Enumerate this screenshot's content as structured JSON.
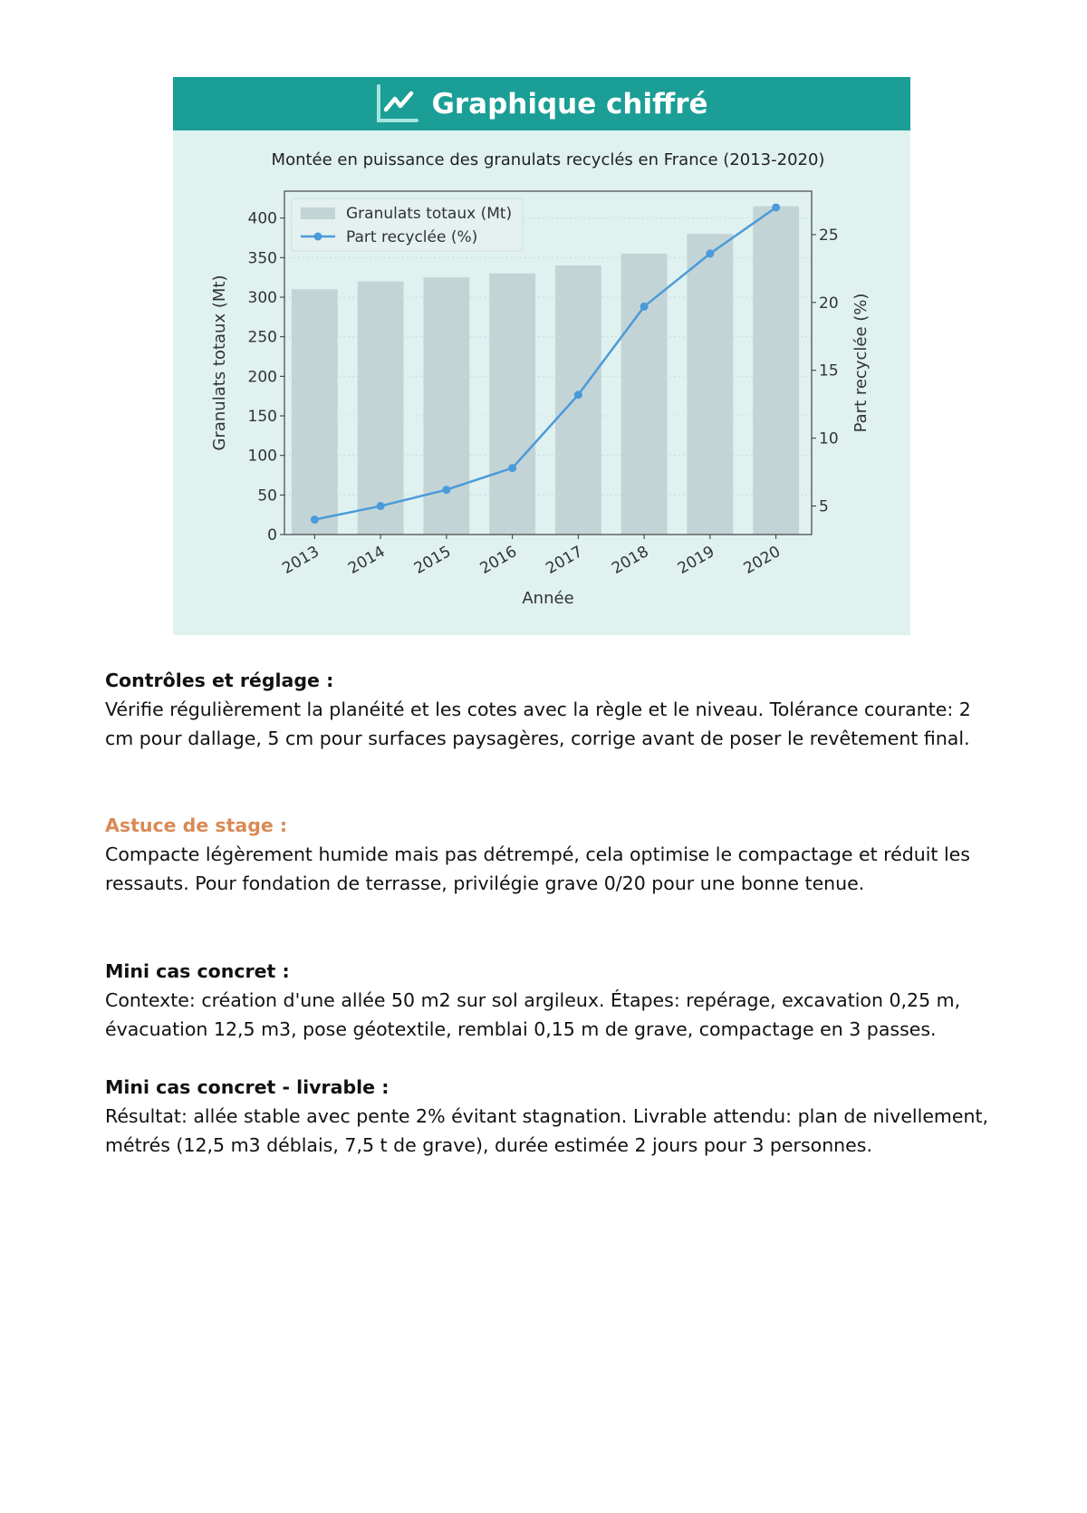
{
  "header": {
    "title": "Graphique chiffré",
    "icon": "line-chart-icon"
  },
  "chart_data": {
    "type": "bar+line",
    "title": "Montée en puissance des granulats recyclés en France (2013-2020)",
    "xlabel": "Année",
    "ylabel": "Granulats totaux (Mt)",
    "ylabel_right": "Part recyclée (%)",
    "categories": [
      "2013",
      "2014",
      "2015",
      "2016",
      "2017",
      "2018",
      "2019",
      "2020"
    ],
    "series": [
      {
        "name": "Granulats totaux (Mt)",
        "type": "bar",
        "axis": "left",
        "color": "#c3d4d6",
        "values": [
          310,
          320,
          325,
          330,
          340,
          355,
          380,
          415
        ]
      },
      {
        "name": "Part recyclée (%)",
        "type": "line",
        "axis": "right",
        "color": "#4b9ad9",
        "values": [
          4.0,
          5.0,
          6.2,
          7.8,
          13.2,
          19.7,
          23.6,
          27.0
        ]
      }
    ],
    "ylim": [
      0,
      434
    ],
    "ylim_right": [
      2.9,
      28.2
    ],
    "yticks": [
      "0",
      "50",
      "100",
      "150",
      "200",
      "250",
      "300",
      "350",
      "400"
    ],
    "yticks_right": [
      "5",
      "10",
      "15",
      "20",
      "25"
    ],
    "grid": true,
    "legend": "top-left"
  },
  "sections": [
    {
      "title": "Contrôles et réglage :",
      "style": "normal",
      "body": "Vérifie régulièrement la planéité et les cotes avec la règle et le niveau. Tolérance courante: 2 cm pour dallage, 5 cm pour surfaces paysagères, corrige avant de poser le revêtement final."
    },
    {
      "title": "Astuce de stage :",
      "style": "orange",
      "body": "Compacte légèrement humide mais pas détrempé, cela optimise le compactage et réduit les ressauts. Pour fondation de terrasse, privilégie grave 0/20 pour une bonne tenue."
    },
    {
      "title": "Mini cas concret :",
      "style": "normal",
      "body": "Contexte: création d'une allée 50 m2 sur sol argileux. Étapes: repérage, excavation 0,25 m, évacuation 12,5 m3, pose géotextile, remblai 0,15 m de grave, compactage en 3 passes."
    },
    {
      "title": "Mini cas concret - livrable :",
      "style": "normal",
      "body": "Résultat: allée stable avec pente 2% évitant stagnation. Livrable attendu: plan de nivellement, métrés (12,5 m3 déblais, 7,5 t de grave), durée estimée 2 jours pour 3 personnes."
    }
  ]
}
